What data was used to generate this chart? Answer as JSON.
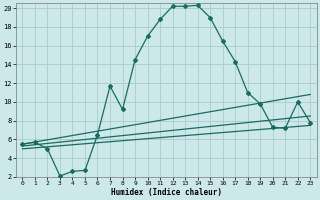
{
  "xlabel": "Humidex (Indice chaleur)",
  "background_color": "#cce8e8",
  "grid_color": "#aacccc",
  "line_color": "#1a6b60",
  "xlim": [
    -0.5,
    23.5
  ],
  "ylim": [
    2,
    20.5
  ],
  "xticks": [
    0,
    1,
    2,
    3,
    4,
    5,
    6,
    7,
    8,
    9,
    10,
    11,
    12,
    13,
    14,
    15,
    16,
    17,
    18,
    19,
    20,
    21,
    22,
    23
  ],
  "yticks": [
    2,
    4,
    6,
    8,
    10,
    12,
    14,
    16,
    18,
    20
  ],
  "line1_x": [
    0,
    1,
    2,
    3,
    4,
    5,
    6,
    7,
    8,
    9,
    10,
    11,
    12,
    13,
    14,
    15,
    16,
    17,
    18,
    19,
    20,
    21,
    22,
    23
  ],
  "line1_y": [
    5.5,
    5.7,
    5.0,
    2.1,
    2.6,
    2.7,
    6.5,
    11.7,
    9.2,
    14.5,
    17.0,
    18.8,
    20.2,
    20.2,
    20.3,
    19.0,
    16.5,
    14.3,
    11.0,
    9.8,
    7.3,
    7.2,
    10.0,
    7.8
  ],
  "line2_x": [
    0,
    23
  ],
  "line2_y": [
    5.5,
    10.8
  ],
  "line3_x": [
    0,
    23
  ],
  "line3_y": [
    5.3,
    8.5
  ],
  "line4_x": [
    0,
    23
  ],
  "line4_y": [
    5.0,
    7.5
  ]
}
